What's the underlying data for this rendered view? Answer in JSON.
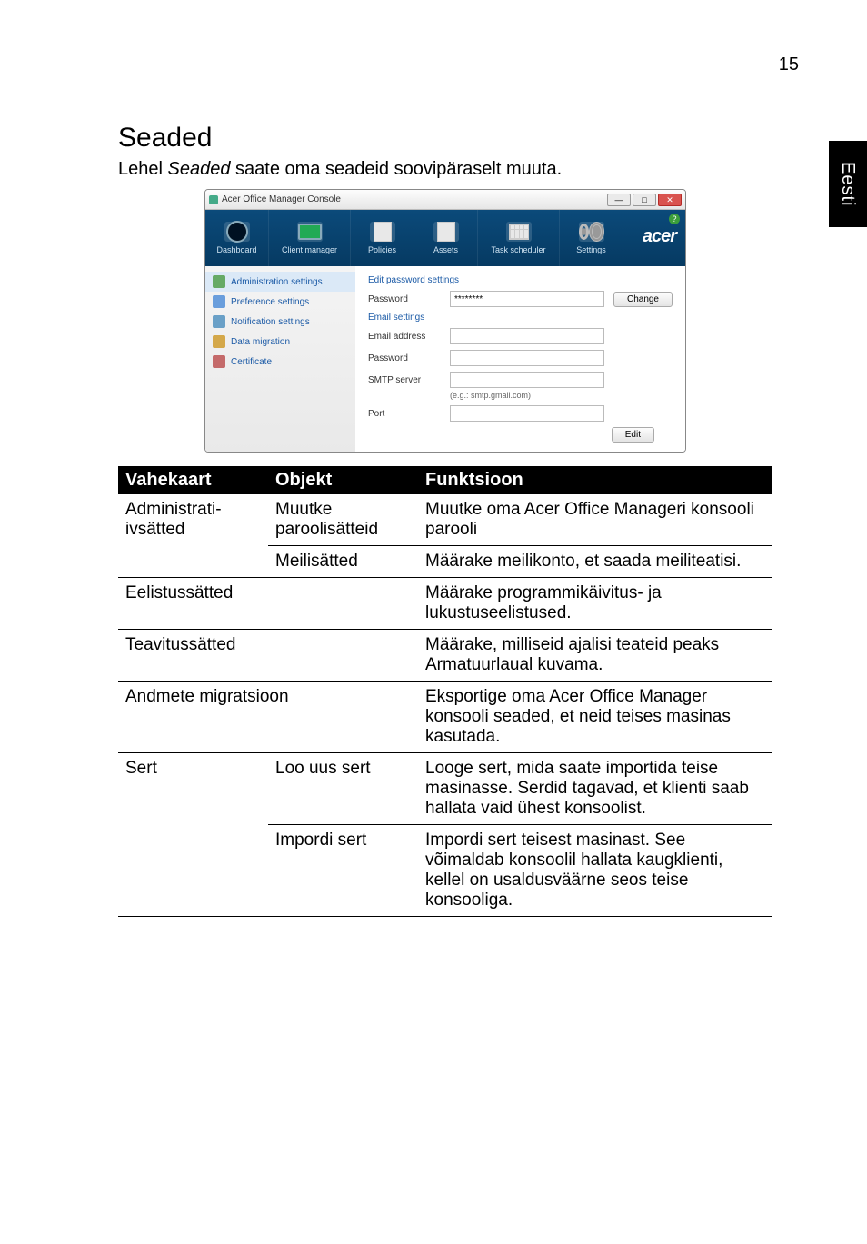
{
  "page_number": "15",
  "side_tab": "Eesti",
  "heading": "Seaded",
  "intro_prefix": "Lehel ",
  "intro_em": "Seaded",
  "intro_suffix": " saate oma seadeid soovipäraselt muuta.",
  "app": {
    "window_title": "Acer Office Manager Console",
    "top_nav": {
      "dashboard": "Dashboard",
      "client_manager": "Client manager",
      "policies": "Policies",
      "assets": "Assets",
      "task_scheduler": "Task scheduler",
      "settings": "Settings"
    },
    "logo": "acer",
    "help": "?",
    "sidebar": {
      "admin": "Administration settings",
      "pref": "Preference settings",
      "notif": "Notification settings",
      "data": "Data migration",
      "cert": "Certificate"
    },
    "main": {
      "edit_password_settings": "Edit password settings",
      "password_label": "Password",
      "password_value": "********",
      "change_btn": "Change",
      "email_settings": "Email settings",
      "email_address_label": "Email address",
      "password2_label": "Password",
      "smtp_label": "SMTP server",
      "smtp_hint": "(e.g.: smtp.gmail.com)",
      "port_label": "Port",
      "edit_btn": "Edit"
    }
  },
  "table": {
    "headers": {
      "tab": "Vahekaart",
      "object": "Objekt",
      "func": "Funktsioon"
    },
    "rows": [
      {
        "tab": "Administrati-ivsätted",
        "object": "Muutke paroolisätteid",
        "func": "Muutke oma Acer Office Manageri konsooli parooli"
      },
      {
        "tab": "",
        "object": "Meilisätted",
        "func": "Määrake meilikonto, et saada meiliteatisi."
      },
      {
        "tab": "Eelistussätted",
        "object": "",
        "func": "Määrake programmikäivitus- ja lukustuseelistused."
      },
      {
        "tab": "Teavitussätted",
        "object": "",
        "func": "Määrake, milliseid ajalisi teateid peaks Armatuurlaual kuvama."
      },
      {
        "tab": "Andmete migratsioon",
        "object": "",
        "func": "Eksportige oma Acer Office Manager konsooli seaded, et neid teises masinas kasutada."
      },
      {
        "tab": "Sert",
        "object": "Loo uus sert",
        "func": "Looge sert, mida saate importida teise masinasse. Serdid tagavad, et klienti saab hallata vaid ühest konsoolist."
      },
      {
        "tab": "",
        "object": "Impordi sert",
        "func": "Impordi sert teisest masinast. See võimaldab konsoolil hallata kaugklienti, kellel on usaldusväärne seos teise konsooliga."
      }
    ]
  }
}
